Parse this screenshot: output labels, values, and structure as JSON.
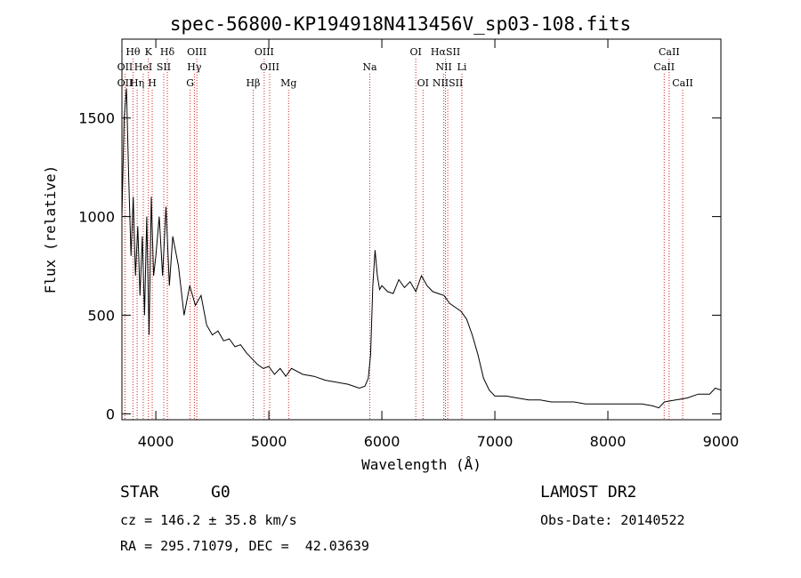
{
  "chart_data": {
    "type": "line",
    "title": "spec-56800-KP194918N413456V_sp03-108.fits",
    "xlabel": "Wavelength (Å)",
    "ylabel": "Flux (relative)",
    "xlim": [
      3700,
      9000
    ],
    "ylim": [
      -30,
      1900
    ],
    "xticks": [
      4000,
      5000,
      6000,
      7000,
      8000,
      9000
    ],
    "yticks": [
      0,
      500,
      1000,
      1500
    ],
    "grid": false,
    "series": [
      {
        "x": [
          3700,
          3720,
          3740,
          3760,
          3780,
          3800,
          3820,
          3840,
          3860,
          3880,
          3900,
          3920,
          3940,
          3960,
          3980,
          4000,
          4030,
          4060,
          4090,
          4120,
          4150,
          4200,
          4250,
          4300,
          4350,
          4400,
          4450,
          4500,
          4550,
          4600,
          4650,
          4700,
          4750,
          4800,
          4850,
          4900,
          4950,
          5000,
          5050,
          5100,
          5150,
          5200,
          5300,
          5400,
          5500,
          5600,
          5700,
          5800,
          5850,
          5880,
          5900,
          5920,
          5940,
          5960,
          5980,
          6000,
          6050,
          6100,
          6150,
          6200,
          6250,
          6300,
          6350,
          6400,
          6450,
          6500,
          6550,
          6600,
          6650,
          6700,
          6750,
          6800,
          6850,
          6900,
          6950,
          7000,
          7100,
          7200,
          7300,
          7400,
          7500,
          7600,
          7700,
          7800,
          7900,
          8000,
          8100,
          8200,
          8300,
          8400,
          8450,
          8500,
          8600,
          8700,
          8800,
          8900,
          8950,
          9000
        ],
        "y": [
          1000,
          1500,
          1650,
          1200,
          800,
          1100,
          700,
          950,
          600,
          900,
          500,
          1000,
          400,
          1100,
          700,
          800,
          1000,
          700,
          1050,
          650,
          900,
          750,
          500,
          650,
          550,
          600,
          450,
          400,
          420,
          370,
          380,
          340,
          350,
          310,
          280,
          250,
          230,
          240,
          200,
          230,
          190,
          230,
          200,
          190,
          170,
          160,
          150,
          130,
          140,
          180,
          300,
          650,
          830,
          700,
          630,
          650,
          620,
          610,
          680,
          640,
          670,
          620,
          700,
          650,
          620,
          610,
          600,
          560,
          540,
          520,
          480,
          400,
          300,
          180,
          120,
          90,
          90,
          80,
          70,
          70,
          60,
          60,
          60,
          50,
          50,
          50,
          50,
          50,
          50,
          40,
          30,
          60,
          70,
          80,
          100,
          100,
          130,
          120
        ]
      }
    ],
    "lines": [
      {
        "label": "Hθ",
        "x": 3798,
        "row": 0
      },
      {
        "label": "K",
        "x": 3934,
        "row": 0
      },
      {
        "label": "Hδ",
        "x": 4102,
        "row": 0
      },
      {
        "label": "OIII",
        "x": 4363,
        "row": 0
      },
      {
        "label": "OIII",
        "x": 4959,
        "row": 0
      },
      {
        "label": "OI",
        "x": 6300,
        "row": 0
      },
      {
        "label": "HαSII",
        "x": 6563,
        "row": 0
      },
      {
        "label": "CaII",
        "x": 8542,
        "row": 0
      },
      {
        "label": "OII",
        "x": 3727,
        "row": 1
      },
      {
        "label": "HeI",
        "x": 3889,
        "row": 1
      },
      {
        "label": "SII",
        "x": 4070,
        "row": 1
      },
      {
        "label": "Hγ",
        "x": 4341,
        "row": 1
      },
      {
        "label": "OIII",
        "x": 5007,
        "row": 1
      },
      {
        "label": "NII",
        "x": 6548,
        "row": 1
      },
      {
        "label": "Li",
        "x": 6708,
        "row": 1
      },
      {
        "label": "CaII",
        "x": 8498,
        "row": 1
      },
      {
        "label": "OII",
        "x": 3727,
        "row": 2
      },
      {
        "label": "Hη",
        "x": 3835,
        "row": 2
      },
      {
        "label": "H",
        "x": 3968,
        "row": 2
      },
      {
        "label": "G",
        "x": 4304,
        "row": 2
      },
      {
        "label": "Hβ",
        "x": 4861,
        "row": 2
      },
      {
        "label": "Mg",
        "x": 5175,
        "row": 2
      },
      {
        "label": "Na",
        "x": 5893,
        "row": 1
      },
      {
        "label": "OI",
        "x": 6364,
        "row": 2
      },
      {
        "label": "NIISII",
        "x": 6583,
        "row": 2
      },
      {
        "label": "CaII",
        "x": 8662,
        "row": 2
      }
    ]
  },
  "info": {
    "class_label": "STAR",
    "subclass": "G0",
    "survey": "LAMOST DR2",
    "cz": "cz = 146.2 ± 35.8 km/s",
    "obs_date": "Obs-Date: 20140522",
    "coords": "RA = 295.71079, DEC =  42.03639"
  },
  "colors": {
    "spectrum": "#000000",
    "line_markers": "#d62020",
    "axis": "#000000"
  }
}
